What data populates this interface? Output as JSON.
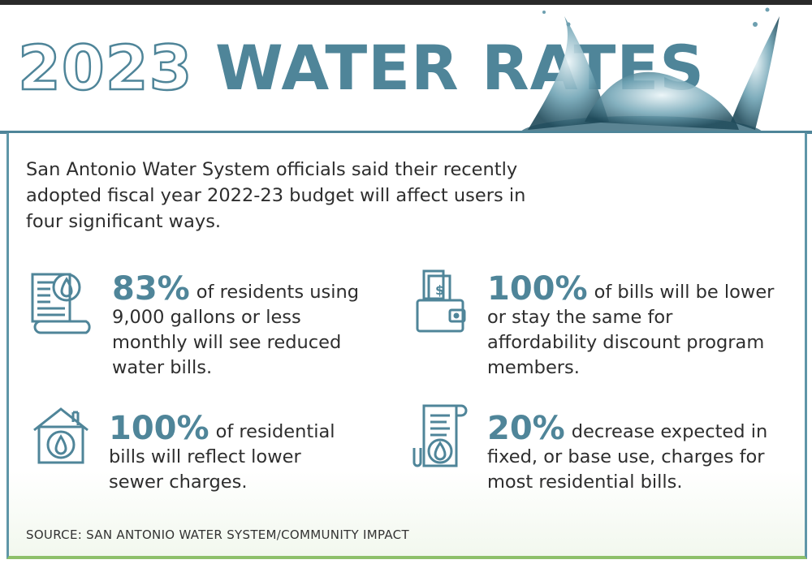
{
  "title": {
    "year": "2023",
    "rest": "WATER RATES"
  },
  "intro": "San Antonio Water System officials said their recently adopted fiscal year 2022-23 budget will affect users in four significant ways.",
  "stats": [
    {
      "icon": "water-bill-document-icon",
      "value": "83%",
      "text": "of residents using 9,000 gallons or less monthly will see reduced water bills."
    },
    {
      "icon": "wallet-icon",
      "value": "100%",
      "text": "of bills will be lower or stay the same for affordability discount program members."
    },
    {
      "icon": "house-water-drop-icon",
      "value": "100%",
      "text": "of residential bills will reflect lower sewer charges."
    },
    {
      "icon": "receipt-water-drop-icon",
      "value": "20%",
      "text": "decrease expected in fixed, or base use, charges for most residential bills."
    }
  ],
  "source": "SOURCE: SAN ANTONIO WATER SYSTEM/COMMUNITY IMPACT",
  "colors": {
    "accent": "#4f8599",
    "green": "#8dc06a",
    "text": "#2e2e2e"
  }
}
